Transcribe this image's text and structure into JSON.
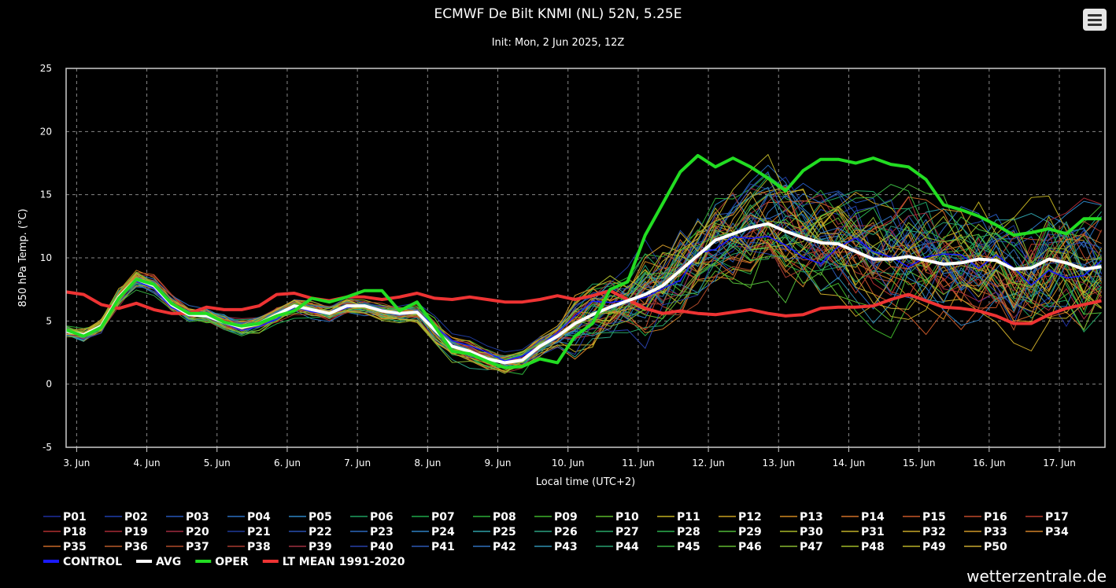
{
  "footer": "wetterzentrale.de",
  "menu_icon": "hamburger-menu-icon",
  "chart_data": {
    "type": "line",
    "title": "ECMWF De Bilt KNMI (NL) 52N, 5.25E",
    "subtitle": "Init: Mon, 2 Jun 2025, 12Z",
    "xlabel": "Local time (UTC+2)",
    "ylabel": "850 hPa Temp. (°C)",
    "ylim": [
      -5,
      25
    ],
    "yticks": [
      25,
      20,
      15,
      10,
      5,
      0,
      -5
    ],
    "xlim": [
      2.85,
      17.65
    ],
    "xticks": [
      3,
      4,
      5,
      6,
      7,
      8,
      9,
      10,
      11,
      12,
      13,
      14,
      15,
      16,
      17
    ],
    "xtick_labels": [
      "3. Jun",
      "4. Jun",
      "5. Jun",
      "6. Jun",
      "7. Jun",
      "8. Jun",
      "9. Jun",
      "10. Jun",
      "11. Jun",
      "12. Jun",
      "13. Jun",
      "14. Jun",
      "15. Jun",
      "16. Jun",
      "17. Jun"
    ],
    "grid": true,
    "legend_position": "bottom",
    "x": [
      2.85,
      3.1,
      3.35,
      3.6,
      3.85,
      4.1,
      4.35,
      4.6,
      4.85,
      5.1,
      5.35,
      5.6,
      5.85,
      6.1,
      6.35,
      6.6,
      6.85,
      7.1,
      7.35,
      7.6,
      7.85,
      8.1,
      8.35,
      8.6,
      8.85,
      9.1,
      9.35,
      9.6,
      9.85,
      10.1,
      10.35,
      10.6,
      10.85,
      11.1,
      11.35,
      11.6,
      11.85,
      12.1,
      12.35,
      12.6,
      12.85,
      13.1,
      13.35,
      13.6,
      13.85,
      14.1,
      14.35,
      14.6,
      14.85,
      15.1,
      15.35,
      15.6,
      15.85,
      16.1,
      16.35,
      16.6,
      16.85,
      17.1,
      17.35,
      17.6
    ],
    "series": [
      {
        "name": "OPER",
        "color": "#22dd22",
        "width": 4,
        "values": [
          4.3,
          3.8,
          4.5,
          6.8,
          8.3,
          7.9,
          6.4,
          5.6,
          5.6,
          4.9,
          4.6,
          4.8,
          5.4,
          5.8,
          6.8,
          6.5,
          6.9,
          7.4,
          7.4,
          5.8,
          6.5,
          4.6,
          2.6,
          2.4,
          1.8,
          1.3,
          1.4,
          2.0,
          1.7,
          3.8,
          4.8,
          7.5,
          8.1,
          11.8,
          14.3,
          16.8,
          18.1,
          17.2,
          17.9,
          17.2,
          16.3,
          15.3,
          16.9,
          17.8,
          17.8,
          17.5,
          17.9,
          17.4,
          17.2,
          16.2,
          14.2,
          13.8,
          13.3,
          12.6,
          11.8,
          12.0,
          12.3,
          11.9,
          13.1,
          13.1
        ]
      },
      {
        "name": "AVG",
        "color": "#ffffff",
        "width": 4,
        "values": [
          4.2,
          3.9,
          4.6,
          6.9,
          8.3,
          7.8,
          6.3,
          5.5,
          5.4,
          4.9,
          4.5,
          4.8,
          5.5,
          6.2,
          5.9,
          5.6,
          6.2,
          6.2,
          5.8,
          5.6,
          5.7,
          4.3,
          3.0,
          2.6,
          2.0,
          1.7,
          1.9,
          3.0,
          3.8,
          4.8,
          5.5,
          6.1,
          6.6,
          7.1,
          7.8,
          9.0,
          10.2,
          11.4,
          11.9,
          12.4,
          12.7,
          12.1,
          11.6,
          11.2,
          11.1,
          10.5,
          9.9,
          9.9,
          10.1,
          9.8,
          9.5,
          9.6,
          9.9,
          9.8,
          9.1,
          9.2,
          9.9,
          9.6,
          9.1,
          9.3
        ]
      },
      {
        "name": "LT MEAN 1991-2020",
        "color": "#ee3333",
        "width": 4,
        "values": [
          7.3,
          7.1,
          6.3,
          6.0,
          6.4,
          5.9,
          5.6,
          5.6,
          6.1,
          5.9,
          5.9,
          6.2,
          7.1,
          7.2,
          6.8,
          6.6,
          6.9,
          6.9,
          6.7,
          6.9,
          7.2,
          6.8,
          6.7,
          6.9,
          6.7,
          6.5,
          6.5,
          6.7,
          7.0,
          6.7,
          7.0,
          7.4,
          6.7,
          6.0,
          5.6,
          5.8,
          5.6,
          5.5,
          5.7,
          5.9,
          5.6,
          5.4,
          5.5,
          6.0,
          6.1,
          6.1,
          6.2,
          6.7,
          7.1,
          6.6,
          6.1,
          6.0,
          5.8,
          5.4,
          4.8,
          4.8,
          5.5,
          6.0,
          6.3,
          6.6
        ]
      }
    ],
    "ensemble_members": [
      "P01",
      "P02",
      "P03",
      "P04",
      "P05",
      "P06",
      "P07",
      "P08",
      "P09",
      "P10",
      "P11",
      "P12",
      "P13",
      "P14",
      "P15",
      "P16",
      "P17",
      "P18",
      "P19",
      "P20",
      "P21",
      "P22",
      "P23",
      "P24",
      "P25",
      "P26",
      "P27",
      "P28",
      "P29",
      "P30",
      "P31",
      "P32",
      "P33",
      "P34",
      "P35",
      "P36",
      "P37",
      "P38",
      "P39",
      "P40",
      "P41",
      "P42",
      "P43",
      "P44",
      "P45",
      "P46",
      "P47",
      "P48",
      "P49",
      "P50"
    ],
    "ensemble_colors": [
      "#1f2fa0",
      "#1f3fae",
      "#2556b8",
      "#2a6fbf",
      "#2e86c4",
      "#1fa060",
      "#1fa84a",
      "#2cad38",
      "#3fb22a",
      "#5ab82a",
      "#c0b020",
      "#c8a020",
      "#d08820",
      "#d07028",
      "#c85828",
      "#c04a2a",
      "#b83a2a",
      "#b03030",
      "#a82a35",
      "#a02a40",
      "#1f3a9a",
      "#2850b0",
      "#2c68bc",
      "#2f80c2",
      "#2fa0a8",
      "#2aa080",
      "#28a868",
      "#2cb050",
      "#50b838",
      "#a8b828",
      "#c0b028",
      "#c8a828",
      "#d09828",
      "#d08028",
      "#c86828",
      "#b85a2a",
      "#b04a2a",
      "#a83a30",
      "#a03040",
      "#2840a8",
      "#2c58b4",
      "#2f70bc",
      "#2f90b0",
      "#28a070",
      "#38b040",
      "#60b830",
      "#88b830",
      "#a0b828",
      "#b8b028",
      "#c8a830"
    ],
    "legend": [
      {
        "label": "CONTROL",
        "color": "#1a1aff",
        "bold": true
      },
      {
        "label": "AVG",
        "color": "#ffffff",
        "bold": true
      },
      {
        "label": "OPER",
        "color": "#22dd22",
        "bold": true
      },
      {
        "label": "LT MEAN 1991-2020",
        "color": "#ee3333",
        "bold": true
      }
    ]
  }
}
